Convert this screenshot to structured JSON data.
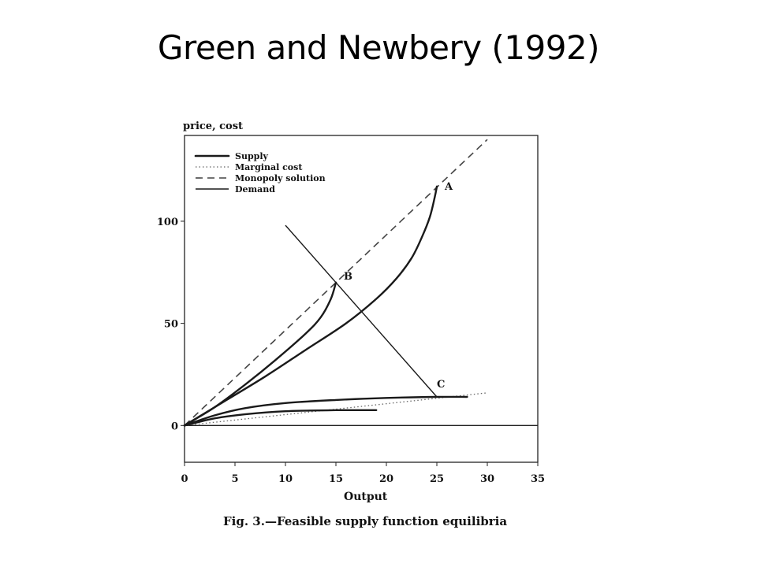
{
  "slide": {
    "title": "Green and Newbery (1992)"
  },
  "figure": {
    "caption": "Fig. 3.—Feasible supply function equilibria"
  },
  "chart_data": {
    "type": "line",
    "xlabel": "Output",
    "ylabel": "price, cost",
    "xlim": [
      0,
      35
    ],
    "ylim": [
      -18,
      142
    ],
    "xticks": [
      0,
      5,
      10,
      15,
      20,
      25,
      30,
      35
    ],
    "yticks": [
      0,
      50,
      100
    ],
    "grid": false,
    "legend_position": "top-left",
    "legend": [
      {
        "label": "Supply",
        "style": "thick"
      },
      {
        "label": "Marginal cost",
        "style": "dotted"
      },
      {
        "label": "Monopoly solution",
        "style": "dashed"
      },
      {
        "label": "Demand",
        "style": "thin"
      }
    ],
    "series": [
      {
        "role": "monopoly",
        "style": "dashed",
        "x": [
          0,
          30
        ],
        "y": [
          0,
          140
        ]
      },
      {
        "role": "marginal-cost",
        "style": "dotted",
        "x": [
          0,
          30
        ],
        "y": [
          0,
          16
        ]
      },
      {
        "role": "demand",
        "style": "thin",
        "x": [
          10,
          25
        ],
        "y": [
          98,
          14
        ]
      },
      {
        "role": "supply",
        "style": "thick",
        "x": [
          0,
          3,
          6,
          9,
          12,
          13.5,
          14.5,
          15
        ],
        "y": [
          0,
          9,
          20,
          32,
          45,
          53,
          62,
          70
        ]
      },
      {
        "role": "supply",
        "style": "thick",
        "x": [
          0,
          4,
          8,
          12,
          16,
          19,
          21,
          22.5,
          23.5,
          24.3,
          24.8,
          25
        ],
        "y": [
          0,
          12,
          24,
          37,
          50,
          62,
          72,
          82,
          92,
          102,
          112,
          117
        ]
      },
      {
        "role": "supply",
        "style": "thick",
        "x": [
          0,
          3,
          6,
          10,
          15,
          20,
          25,
          28
        ],
        "y": [
          0,
          5,
          8.5,
          11,
          12.5,
          13.5,
          14,
          14
        ]
      },
      {
        "role": "supply",
        "style": "thick",
        "x": [
          0,
          3,
          6,
          10,
          15,
          19
        ],
        "y": [
          0,
          3.5,
          5.5,
          7,
          7.5,
          7.5
        ]
      }
    ],
    "annotations": [
      {
        "text": "A",
        "x": 25,
        "y": 117
      },
      {
        "text": "B",
        "x": 15,
        "y": 70
      },
      {
        "text": "C",
        "x": 25,
        "y": 14
      }
    ]
  }
}
